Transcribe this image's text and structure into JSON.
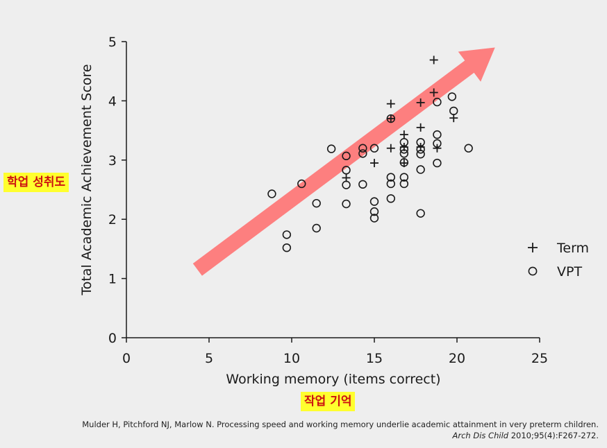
{
  "highlight_y_label": "학업 성취도",
  "highlight_x_label": "작업 기억",
  "citation": {
    "line1": "Mulder H, Pitchford NJ, Marlow N. Processing speed and working memory underlie academic attainment in very preterm children.",
    "journal": "Arch Dis Child",
    "details": " 2010;95(4):F267-272."
  },
  "colors": {
    "background": "#eeeeee",
    "arrow": "#ff6b6b",
    "highlight_bg": "#ffff2e",
    "highlight_text": "#cc1111",
    "marker": "#1a1a1a"
  },
  "chart_data": {
    "type": "scatter",
    "xlabel": "Working memory (items correct)",
    "ylabel": "Total Academic Achievement Score",
    "xlim": [
      0,
      25
    ],
    "ylim": [
      0,
      5
    ],
    "x_ticks": [
      "0",
      "5",
      "10",
      "15",
      "20",
      "25"
    ],
    "y_ticks": [
      "0",
      "1",
      "2",
      "3",
      "4",
      "5"
    ],
    "legend_position": "right",
    "grid": false,
    "trend_arrow": {
      "from": [
        4.3,
        1.15
      ],
      "to": [
        22.3,
        4.9
      ]
    },
    "series": [
      {
        "name": "Term",
        "marker": "plus",
        "points": [
          [
            18.6,
            4.69
          ],
          [
            18.6,
            4.14
          ],
          [
            16.0,
            3.95
          ],
          [
            17.8,
            3.97
          ],
          [
            19.8,
            3.71
          ],
          [
            16.0,
            3.7
          ],
          [
            17.8,
            3.55
          ],
          [
            16.8,
            3.43
          ],
          [
            16.0,
            3.2
          ],
          [
            16.8,
            3.22
          ],
          [
            17.8,
            3.22
          ],
          [
            18.8,
            3.2
          ],
          [
            15.0,
            2.95
          ],
          [
            16.8,
            2.95
          ],
          [
            13.3,
            2.7
          ]
        ]
      },
      {
        "name": "VPT",
        "marker": "circle",
        "points": [
          [
            19.7,
            4.07
          ],
          [
            18.8,
            3.98
          ],
          [
            19.8,
            3.83
          ],
          [
            16.0,
            3.7
          ],
          [
            18.8,
            3.43
          ],
          [
            12.4,
            3.19
          ],
          [
            14.3,
            3.2
          ],
          [
            15.0,
            3.2
          ],
          [
            16.8,
            3.3
          ],
          [
            17.8,
            3.3
          ],
          [
            18.8,
            3.28
          ],
          [
            20.7,
            3.2
          ],
          [
            16.8,
            3.18
          ],
          [
            17.8,
            3.18
          ],
          [
            14.3,
            3.11
          ],
          [
            16.8,
            3.11
          ],
          [
            17.8,
            3.1
          ],
          [
            13.3,
            3.07
          ],
          [
            16.8,
            2.96
          ],
          [
            18.8,
            2.95
          ],
          [
            13.3,
            2.83
          ],
          [
            17.8,
            2.84
          ],
          [
            16.0,
            2.71
          ],
          [
            16.8,
            2.71
          ],
          [
            16.0,
            2.6
          ],
          [
            16.8,
            2.6
          ],
          [
            13.3,
            2.58
          ],
          [
            14.3,
            2.59
          ],
          [
            10.6,
            2.6
          ],
          [
            8.8,
            2.43
          ],
          [
            16.0,
            2.35
          ],
          [
            15.0,
            2.3
          ],
          [
            13.3,
            2.26
          ],
          [
            11.5,
            2.27
          ],
          [
            15.0,
            2.13
          ],
          [
            17.8,
            2.1
          ],
          [
            15.0,
            2.02
          ],
          [
            11.5,
            1.85
          ],
          [
            9.7,
            1.74
          ],
          [
            9.7,
            1.52
          ]
        ]
      }
    ]
  }
}
